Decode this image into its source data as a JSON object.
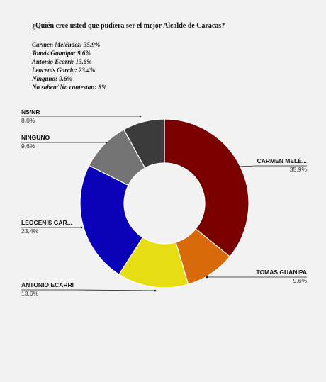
{
  "question": "¿Quién cree usted que pudiera ser el mejor Alcalde de Caracas?",
  "results_list": [
    "Carmen Meléndez: 35.9%",
    "Tomás Guanipa: 9.6%",
    "Antonio Ecarri: 13.6%",
    "Leocenis Garcia: 23.4%",
    "Ninguno: 9.6%",
    "No saben/ No contestan: 8%"
  ],
  "chart_data": {
    "type": "pie",
    "variant": "donut",
    "start": "12 o'clock",
    "direction": "clockwise",
    "slices": [
      {
        "label": "CARMEN MELÉ...",
        "value": 35.9,
        "value_label": "35,9%",
        "color": "#7a0000"
      },
      {
        "label": "TOMAS GUANIPA",
        "value": 9.6,
        "value_label": "9,6%",
        "color": "#d96a0b"
      },
      {
        "label": "ANTONIO ECARRI",
        "value": 13.6,
        "value_label": "13,6%",
        "color": "#e6dd12"
      },
      {
        "label": "LEOCENIS GAR...",
        "value": 23.4,
        "value_label": "23,4%",
        "color": "#0a00b8"
      },
      {
        "label": "NINGUNO",
        "value": 9.6,
        "value_label": "9,6%",
        "color": "#747474"
      },
      {
        "label": "NS/NR",
        "value": 8.0,
        "value_label": "8,0%",
        "color": "#3b3b3b"
      }
    ]
  }
}
